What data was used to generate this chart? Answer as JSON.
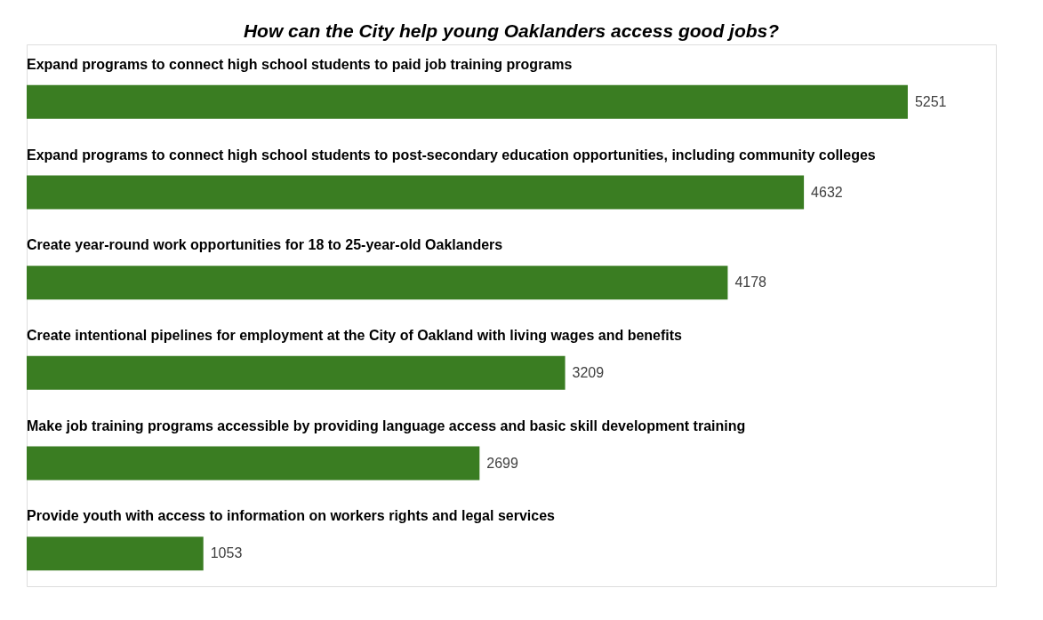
{
  "chart_data": {
    "type": "bar",
    "orientation": "horizontal",
    "title": "How can the City help young Oaklanders access good jobs?",
    "categories": [
      "Expand programs to connect high school students to paid job training programs",
      "Expand programs to connect high school students to post-secondary education opportunities, including community colleges",
      "Create year-round work opportunities for 18 to 25-year-old Oaklanders",
      "Create intentional pipelines for employment at the City of Oakland with living wages and benefits",
      "Make job training programs accessible by providing language access and basic skill development training",
      "Provide youth with access to information on workers rights and legal services"
    ],
    "values": [
      5251,
      4632,
      4178,
      3209,
      2699,
      1053
    ],
    "color": "#3a7d22",
    "data_labels": true
  }
}
